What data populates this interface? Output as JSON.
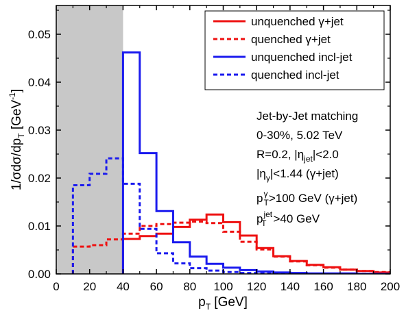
{
  "chart_data": {
    "type": "line",
    "xlabel": "p_T [GeV]",
    "ylabel": "1/σdσ/dp_T [GeV^-1]",
    "xlim": [
      0,
      200
    ],
    "ylim": [
      0,
      0.056
    ],
    "xticks": [
      0,
      20,
      40,
      60,
      80,
      100,
      120,
      140,
      160,
      180,
      200
    ],
    "yticks": [
      0.0,
      0.01,
      0.02,
      0.03,
      0.04,
      0.05
    ],
    "ytick_labels": [
      "0.00",
      "0.01",
      "0.02",
      "0.03",
      "0.04",
      "0.05"
    ],
    "shaded_region": {
      "x_start": 0,
      "x_end": 40,
      "color": "#c8c8c8"
    },
    "legend_position": "top-right",
    "series": [
      {
        "name": "unquenched γ+jet",
        "color": "#ee1111",
        "dashed": false,
        "bin_edges": [
          40,
          50,
          60,
          70,
          80,
          90,
          100,
          110,
          120,
          130,
          140,
          150,
          160,
          170,
          180,
          190,
          200
        ],
        "values": [
          0.0073,
          0.0079,
          0.0084,
          0.0098,
          0.0113,
          0.0124,
          0.0108,
          0.008,
          0.0054,
          0.0037,
          0.0027,
          0.0019,
          0.0014,
          0.0009,
          0.0006,
          0.0003
        ]
      },
      {
        "name": "quenched γ+jet",
        "color": "#ee1111",
        "dashed": true,
        "bin_edges": [
          10,
          20,
          30,
          40,
          50,
          60,
          70,
          80,
          90,
          100,
          110,
          120,
          130,
          140,
          150,
          160,
          170,
          180,
          190,
          200
        ],
        "values": [
          0.0057,
          0.006,
          0.0072,
          0.0084,
          0.01,
          0.0104,
          0.0107,
          0.0109,
          0.0106,
          0.0088,
          0.0067,
          0.0051,
          0.0036,
          0.0026,
          0.0018,
          0.0013,
          0.0009,
          0.0006,
          0.0004
        ]
      },
      {
        "name": "unquenched incl-jet",
        "color": "#1a1aee",
        "dashed": false,
        "bin_edges": [
          40,
          50,
          60,
          70,
          80,
          90,
          100,
          110,
          120,
          130,
          140,
          150,
          160,
          170,
          180,
          190,
          200
        ],
        "values": [
          0.0462,
          0.0252,
          0.0131,
          0.0066,
          0.0036,
          0.0021,
          0.0013,
          0.0008,
          0.0005,
          0.0003,
          0.0002,
          0.0001,
          0.0001,
          0.0001,
          0.0,
          0.0
        ]
      },
      {
        "name": "quenched incl-jet",
        "color": "#1a1aee",
        "dashed": true,
        "bin_edges": [
          10,
          20,
          30,
          40,
          50,
          60,
          70,
          80,
          90,
          100,
          110,
          120,
          130,
          140,
          150,
          160,
          170,
          180,
          190,
          200
        ],
        "values": [
          0.0185,
          0.0209,
          0.0241,
          0.0188,
          0.0094,
          0.0043,
          0.0022,
          0.0012,
          0.0007,
          0.0004,
          0.0002,
          0.0001,
          0.0001,
          0.0,
          0.0,
          0.0,
          0.0,
          0.0,
          0.0
        ]
      }
    ],
    "annotations": [
      "Jet-by-Jet matching",
      "0-30%, 5.02 TeV",
      "R=0.2, |η_jet|<2.0",
      "|η_γ|<1.44 (γ+jet)",
      "p_T^γ>100 GeV (γ+jet)",
      "p_T^jet>40 GeV"
    ]
  }
}
